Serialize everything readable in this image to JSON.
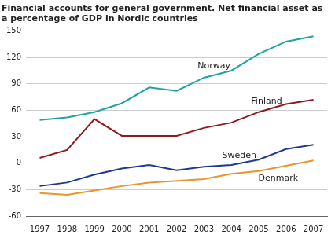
{
  "chart_data": {
    "type": "line",
    "title": [
      "Financial accounts for general government. Net financial asset as",
      "a percentage of GDP in Nordic countries"
    ],
    "categories": [
      "1997",
      "1998",
      "1999",
      "2000",
      "2001",
      "2002",
      "2003",
      "2004",
      "2005",
      "2006",
      "2007"
    ],
    "series": [
      {
        "name": "Norway",
        "color": "#1fa3a3",
        "values": [
          49,
          52,
          58,
          68,
          86,
          82,
          97,
          105,
          124,
          138,
          144
        ]
      },
      {
        "name": "Finland",
        "color": "#8c1c22",
        "values": [
          6,
          15,
          50,
          31,
          31,
          31,
          40,
          46,
          58,
          67,
          72
        ]
      },
      {
        "name": "Sweden",
        "color": "#1f3a8a",
        "values": [
          -26,
          -22,
          -13,
          -6,
          -2,
          -8,
          -4,
          -2,
          4,
          16,
          21
        ]
      },
      {
        "name": "Denmark",
        "color": "#e8952e",
        "values": [
          -34,
          -36,
          -31,
          -26,
          -22,
          -20,
          -18,
          -12,
          -9,
          -3,
          3
        ]
      }
    ],
    "ylim": [
      -60,
      150
    ],
    "yticks": [
      -60,
      -30,
      0,
      30,
      60,
      90,
      120,
      150
    ],
    "grid": true
  }
}
